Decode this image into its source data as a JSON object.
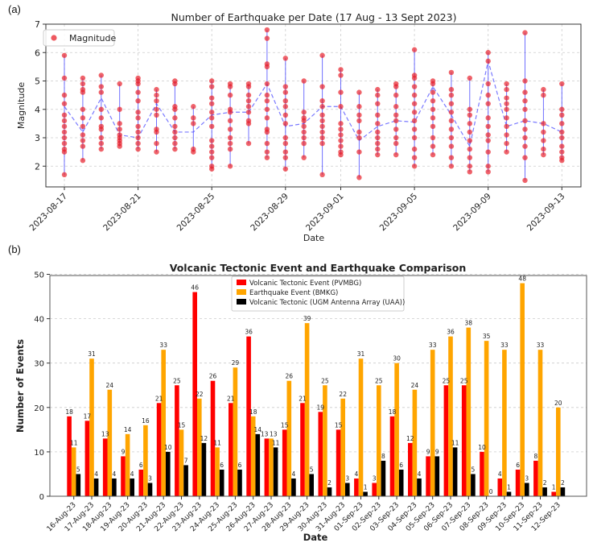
{
  "panel_labels": {
    "a": "(a)",
    "b": "(b)"
  },
  "chart_data": [
    {
      "type": "scatter",
      "title": "Number of Earthquake per Date (17 Aug - 13 Sept 2023)",
      "xlabel": "Date",
      "ylabel": "Magnitude",
      "legend": [
        "Magnitude"
      ],
      "legend_position": "top-left",
      "grid": true,
      "ylim": [
        1.27,
        7.0
      ],
      "yticks": [
        2,
        3,
        4,
        5,
        6,
        7
      ],
      "xticks": [
        "2023-08-17",
        "2023-08-21",
        "2023-08-25",
        "2023-08-29",
        "2023-09-01",
        "2023-09-05",
        "2023-09-09",
        "2023-09-13"
      ],
      "colors": {
        "points": "#e8212b",
        "range_line": "#3333ff",
        "mean_line": "#4d4dff"
      },
      "dates": [
        "2023-08-17",
        "2023-08-18",
        "2023-08-19",
        "2023-08-20",
        "2023-08-21",
        "2023-08-22",
        "2023-08-23",
        "2023-08-24",
        "2023-08-25",
        "2023-08-26",
        "2023-08-27",
        "2023-08-28",
        "2023-08-29",
        "2023-08-30",
        "2023-08-31",
        "2023-09-01",
        "2023-09-02",
        "2023-09-03",
        "2023-09-04",
        "2023-09-05",
        "2023-09-06",
        "2023-09-07",
        "2023-09-08",
        "2023-09-09",
        "2023-09-10",
        "2023-09-11",
        "2023-09-12",
        "2023-09-13"
      ],
      "mean": [
        4.1,
        3.2,
        4.4,
        3.1,
        3.0,
        4.2,
        3.2,
        3.2,
        3.8,
        3.9,
        3.9,
        4.9,
        3.4,
        3.5,
        4.1,
        4.1,
        2.9,
        3.4,
        3.6,
        3.55,
        4.8,
        3.8,
        2.7,
        5.7,
        3.4,
        3.6,
        3.5,
        3.2
      ],
      "magnitudes": [
        [
          5.9,
          5.1,
          4.5,
          4.2,
          3.8,
          3.6,
          3.4,
          3.2,
          3.0,
          2.8,
          2.6,
          2.5,
          1.7
        ],
        [
          5.1,
          4.9,
          4.7,
          4.6,
          4.0,
          3.7,
          3.4,
          3.1,
          2.9,
          2.7,
          2.2
        ],
        [
          5.2,
          4.8,
          4.6,
          4.0,
          3.7,
          3.4,
          3.3,
          3.0,
          2.8,
          2.6
        ],
        [
          4.9,
          4.0,
          3.5,
          3.3,
          3.1,
          3.0,
          2.9,
          2.8,
          2.7
        ],
        [
          5.1,
          5.0,
          4.9,
          4.6,
          4.3,
          3.9,
          3.7,
          3.4,
          3.2,
          3.0,
          2.8,
          2.6
        ],
        [
          4.7,
          4.5,
          4.3,
          4.0,
          3.8,
          3.3,
          3.2,
          2.8,
          2.5
        ],
        [
          5.0,
          4.9,
          4.1,
          4.0,
          3.7,
          3.4,
          3.2,
          3.0,
          2.8,
          2.6
        ],
        [
          4.1,
          3.7,
          3.5,
          2.6,
          2.5
        ],
        [
          5.0,
          4.8,
          4.4,
          4.2,
          3.9,
          3.7,
          3.4,
          2.9,
          2.7,
          2.5,
          2.3,
          2.0,
          1.9
        ],
        [
          4.9,
          4.8,
          4.5,
          4.0,
          3.9,
          3.6,
          3.3,
          3.0,
          2.8,
          2.6,
          2.0
        ],
        [
          4.9,
          4.8,
          4.5,
          4.3,
          4.1,
          3.9,
          3.6,
          3.5,
          2.8
        ],
        [
          6.8,
          6.5,
          5.6,
          5.5,
          4.9,
          4.5,
          4.3,
          4.0,
          3.7,
          3.3,
          3.2,
          2.8,
          2.5,
          2.3
        ],
        [
          5.8,
          4.8,
          4.6,
          4.3,
          4.1,
          3.8,
          3.5,
          3.0,
          2.8,
          2.5,
          2.3,
          1.9
        ],
        [
          5.0,
          3.9,
          3.7,
          3.6,
          3.4,
          3.2,
          3.0,
          2.8,
          2.3
        ],
        [
          5.9,
          4.8,
          4.3,
          4.1,
          3.8,
          3.6,
          3.4,
          3.2,
          3.0,
          2.8,
          1.7
        ],
        [
          5.4,
          5.2,
          4.6,
          4.1,
          3.5,
          3.3,
          3.1,
          2.9,
          2.7,
          2.5,
          2.4
        ],
        [
          4.6,
          4.1,
          3.8,
          3.6,
          3.2,
          3.0,
          2.5,
          1.6
        ],
        [
          4.7,
          4.5,
          4.2,
          3.8,
          3.5,
          3.2,
          3.0,
          2.8,
          2.6,
          2.4
        ],
        [
          4.9,
          4.8,
          4.5,
          4.1,
          3.8,
          3.6,
          3.3,
          3.0,
          2.8,
          2.4
        ],
        [
          6.1,
          5.2,
          5.1,
          4.8,
          4.5,
          4.2,
          3.9,
          3.6,
          3.3,
          3.0,
          2.6,
          2.3,
          2.0
        ],
        [
          5.0,
          4.9,
          4.6,
          4.3,
          4.0,
          3.7,
          3.4,
          3.0,
          2.7,
          2.4
        ],
        [
          5.3,
          4.7,
          4.5,
          4.2,
          3.9,
          3.6,
          3.3,
          3.0,
          2.7,
          2.3,
          2.0
        ],
        [
          5.1,
          4.0,
          3.8,
          3.5,
          3.2,
          2.9,
          2.6,
          2.3,
          2.0,
          1.8
        ],
        [
          6.0,
          5.7,
          4.9,
          4.5,
          4.2,
          3.7,
          3.4,
          3.1,
          2.9,
          2.5,
          2.0,
          1.8
        ],
        [
          4.9,
          4.7,
          4.4,
          4.2,
          4.0,
          3.7,
          3.4,
          3.1,
          2.8,
          2.5
        ],
        [
          6.7,
          5.0,
          4.6,
          4.3,
          4.0,
          3.6,
          3.3,
          3.0,
          2.7,
          2.3,
          1.5
        ],
        [
          4.7,
          4.5,
          3.5,
          3.2,
          2.9,
          2.6,
          2.4
        ],
        [
          4.9,
          4.0,
          3.8,
          3.5,
          3.2,
          3.0,
          2.7,
          2.5,
          2.3,
          2.2
        ]
      ]
    },
    {
      "type": "bar",
      "title": "Volcanic Tectonic Event and Earthquake Comparison",
      "xlabel": "Date",
      "ylabel": "Number of Events",
      "ylim": [
        0,
        50
      ],
      "yticks": [
        0,
        10,
        20,
        30,
        40,
        50
      ],
      "grid": true,
      "legend_position": "top-center",
      "categories": [
        "16-Aug-23",
        "17-Aug-23",
        "18-Aug-23",
        "19-Aug-23",
        "20-Aug-23",
        "21-Aug-23",
        "22-Aug-23",
        "23-Aug-23",
        "24-Aug-23",
        "25-Aug-23",
        "26-Aug-23",
        "27-Aug-23",
        "28-Aug-23",
        "29-Aug-23",
        "30-Aug-23",
        "31-Aug-23",
        "01-Sep-23",
        "02-Sep-23",
        "03-Sep-23",
        "04-Sep-23",
        "05-Sep-23",
        "06-Sep-23",
        "07-Sep-23",
        "08-Sep-23",
        "09-Sep-23",
        "10-Sep-23",
        "11-Sep-23",
        "12-Sep-23"
      ],
      "series": [
        {
          "name": "Volcanic Tectonic Event (PVMBG)",
          "color": "#ff0000",
          "values": [
            18,
            17,
            13,
            9,
            6,
            21,
            25,
            46,
            26,
            21,
            36,
            13,
            15,
            21,
            19,
            15,
            4,
            3,
            18,
            12,
            9,
            25,
            25,
            10,
            4,
            6,
            8,
            1
          ]
        },
        {
          "name": "Earthquake Event (BMKG)",
          "color": "#ffa500",
          "values": [
            11,
            31,
            24,
            14,
            16,
            33,
            15,
            22,
            11,
            29,
            18,
            13,
            26,
            39,
            25,
            22,
            31,
            25,
            30,
            24,
            33,
            36,
            38,
            35,
            33,
            48,
            33,
            20
          ]
        },
        {
          "name": "Volcanic Tectonic (UGM Antenna Array (UAA))",
          "color": "#000000",
          "values": [
            5,
            4,
            4,
            4,
            3,
            10,
            7,
            12,
            6,
            6,
            14,
            11,
            4,
            5,
            2,
            3,
            1,
            8,
            6,
            4,
            9,
            11,
            5,
            0,
            1,
            3,
            2,
            2
          ]
        }
      ]
    }
  ]
}
